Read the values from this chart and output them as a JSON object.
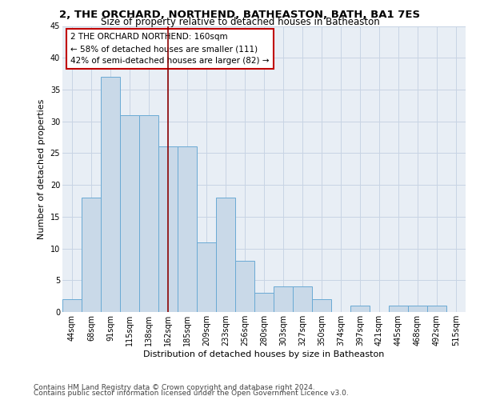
{
  "title_line1": "2, THE ORCHARD, NORTHEND, BATHEASTON, BATH, BA1 7ES",
  "title_line2": "Size of property relative to detached houses in Batheaston",
  "xlabel": "Distribution of detached houses by size in Batheaston",
  "ylabel": "Number of detached properties",
  "categories": [
    "44sqm",
    "68sqm",
    "91sqm",
    "115sqm",
    "138sqm",
    "162sqm",
    "185sqm",
    "209sqm",
    "233sqm",
    "256sqm",
    "280sqm",
    "303sqm",
    "327sqm",
    "350sqm",
    "374sqm",
    "397sqm",
    "421sqm",
    "445sqm",
    "468sqm",
    "492sqm",
    "515sqm"
  ],
  "values": [
    2,
    18,
    37,
    31,
    31,
    26,
    26,
    11,
    18,
    8,
    3,
    4,
    4,
    2,
    0,
    1,
    0,
    1,
    1,
    1,
    0
  ],
  "bar_color": "#c9d9e8",
  "bar_edge_color": "#6aaad4",
  "vline_x_index": 5,
  "vline_color": "#8b0000",
  "annotation_text": "2 THE ORCHARD NORTHEND: 160sqm\n← 58% of detached houses are smaller (111)\n42% of semi-detached houses are larger (82) →",
  "annotation_box_color": "#ffffff",
  "annotation_box_edge_color": "#c00000",
  "ylim": [
    0,
    45
  ],
  "yticks": [
    0,
    5,
    10,
    15,
    20,
    25,
    30,
    35,
    40,
    45
  ],
  "footer_line1": "Contains HM Land Registry data © Crown copyright and database right 2024.",
  "footer_line2": "Contains public sector information licensed under the Open Government Licence v3.0.",
  "bg_color": "#ffffff",
  "plot_bg_color": "#e8eef5",
  "grid_color": "#c8d4e4",
  "title_fontsize": 9.5,
  "subtitle_fontsize": 8.5,
  "axis_label_fontsize": 8,
  "tick_fontsize": 7,
  "annotation_fontsize": 7.5,
  "footer_fontsize": 6.5
}
